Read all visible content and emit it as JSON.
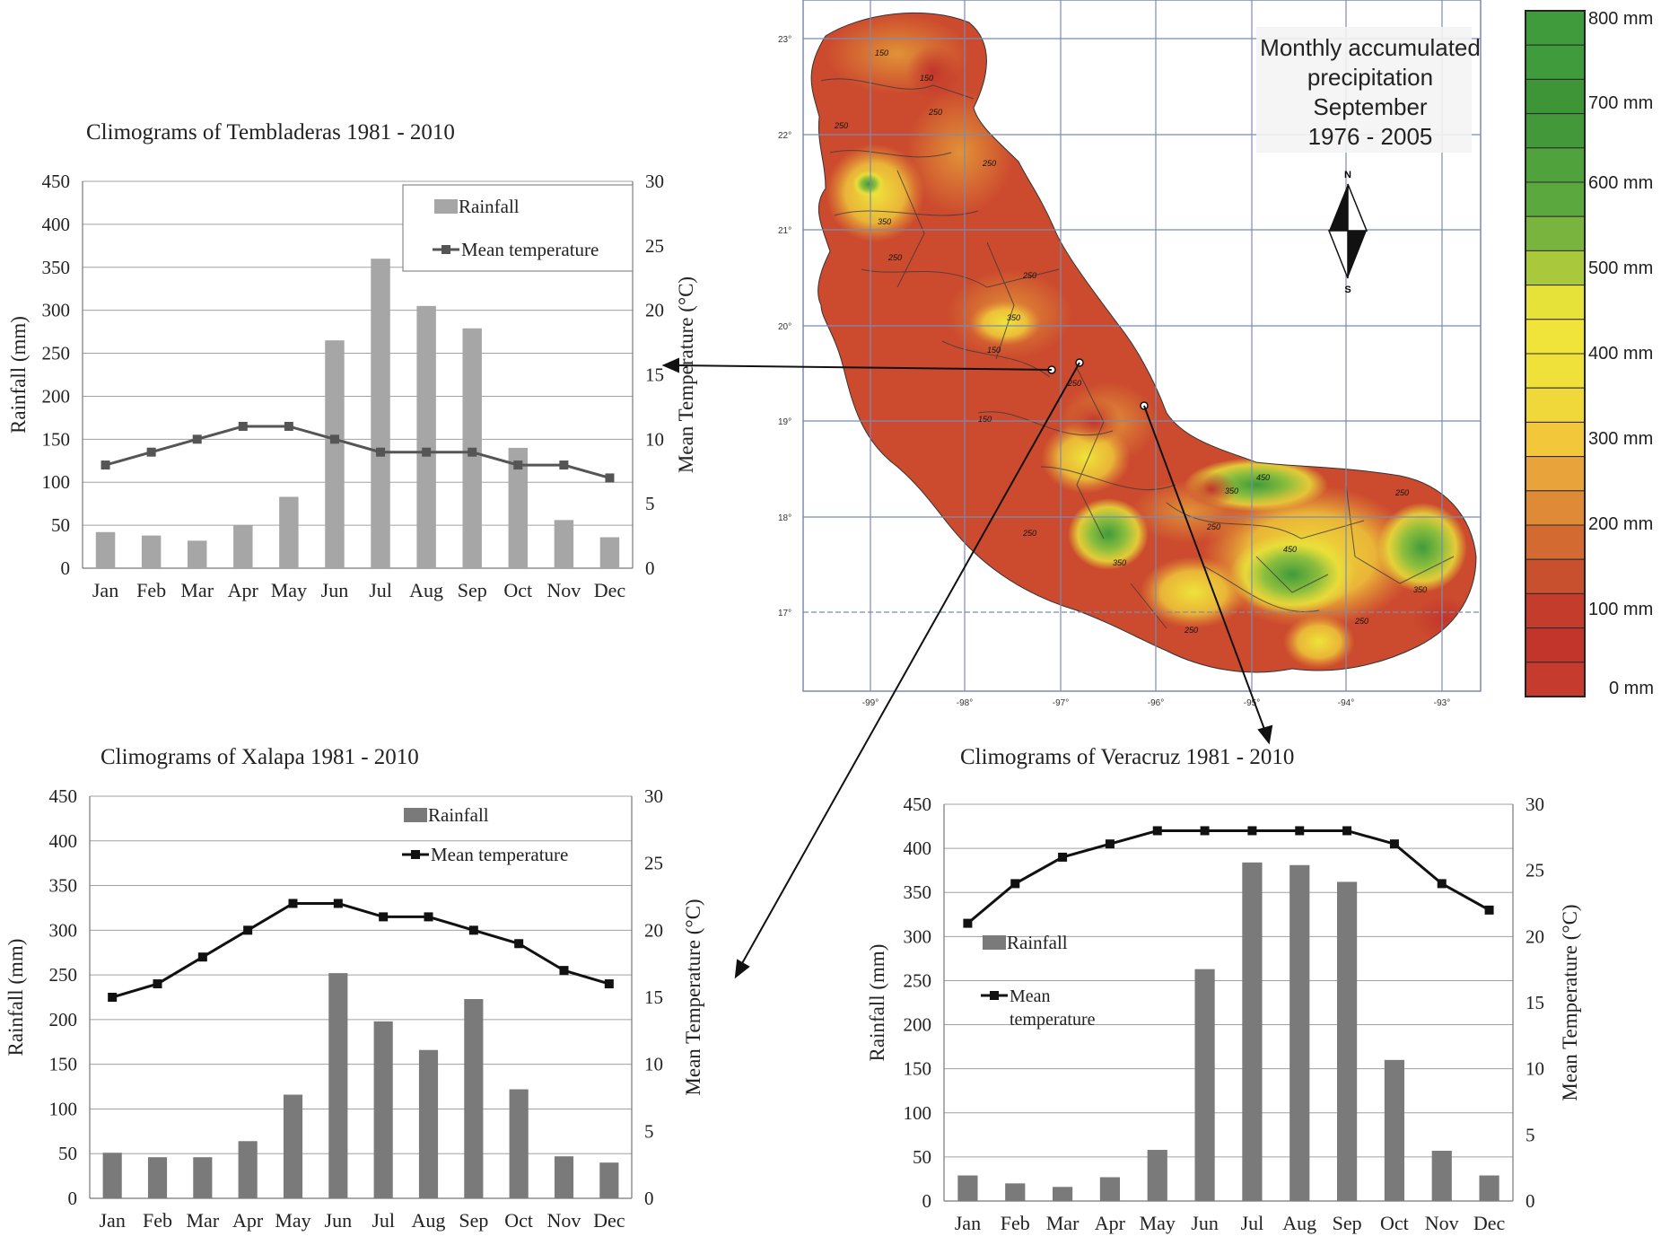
{
  "chart_data": [
    {
      "id": "tembladeras",
      "type": "bar",
      "title": "Climograms of Tembladeras 1981 - 2010",
      "categories": [
        "Jan",
        "Feb",
        "Mar",
        "Apr",
        "May",
        "Jun",
        "Jul",
        "Aug",
        "Sep",
        "Oct",
        "Nov",
        "Dec"
      ],
      "series": [
        {
          "name": "Rainfall",
          "type": "bar",
          "axis": "left",
          "color": "#a6a6a6",
          "values": [
            42,
            38,
            32,
            50,
            83,
            265,
            360,
            305,
            279,
            140,
            56,
            36
          ]
        },
        {
          "name": "Mean temperature",
          "type": "line",
          "axis": "right",
          "color": "#555555",
          "values": [
            8,
            9,
            10,
            11,
            11,
            10,
            9,
            9,
            9,
            8,
            8,
            7
          ]
        }
      ],
      "ylabel": "Rainfall (mm)",
      "ylim": [
        0,
        450
      ],
      "yticks": [
        0,
        50,
        100,
        150,
        200,
        250,
        300,
        350,
        400,
        450
      ],
      "y2label": "Mean Temperature (°C)",
      "y2lim": [
        0,
        30
      ],
      "y2ticks": [
        0,
        5,
        10,
        15,
        20,
        25,
        30
      ],
      "legend": "top-right",
      "grid": true
    },
    {
      "id": "xalapa",
      "type": "bar",
      "title": "Climograms of Xalapa 1981 - 2010",
      "categories": [
        "Jan",
        "Feb",
        "Mar",
        "Apr",
        "May",
        "Jun",
        "Jul",
        "Aug",
        "Sep",
        "Oct",
        "Nov",
        "Dec"
      ],
      "series": [
        {
          "name": "Rainfall",
          "type": "bar",
          "axis": "left",
          "color": "#7a7a7a",
          "values": [
            51,
            46,
            46,
            64,
            116,
            252,
            198,
            166,
            223,
            122,
            47,
            40
          ]
        },
        {
          "name": "Mean temperature",
          "type": "line",
          "axis": "right",
          "color": "#111111",
          "values": [
            15,
            16,
            18,
            20,
            22,
            22,
            21,
            21,
            20,
            19,
            17,
            16
          ]
        }
      ],
      "ylabel": "Rainfall (mm)",
      "ylim": [
        0,
        450
      ],
      "yticks": [
        0,
        50,
        100,
        150,
        200,
        250,
        300,
        350,
        400,
        450
      ],
      "y2label": "Mean Temperature (°C)",
      "y2lim": [
        0,
        30
      ],
      "y2ticks": [
        0,
        5,
        10,
        15,
        20,
        25,
        30
      ],
      "legend": "top-right",
      "grid": true
    },
    {
      "id": "veracruz",
      "type": "bar",
      "title": "Climograms of Veracruz 1981 - 2010",
      "categories": [
        "Jan",
        "Feb",
        "Mar",
        "Apr",
        "May",
        "Jun",
        "Jul",
        "Aug",
        "Sep",
        "Oct",
        "Nov",
        "Dec"
      ],
      "series": [
        {
          "name": "Rainfall",
          "type": "bar",
          "axis": "left",
          "color": "#7a7a7a",
          "values": [
            29,
            20,
            16,
            27,
            58,
            263,
            384,
            381,
            362,
            160,
            57,
            29
          ]
        },
        {
          "name": "Mean temperature",
          "type": "line",
          "axis": "right",
          "color": "#111111",
          "legend_lines": [
            "Mean",
            "temperature"
          ],
          "values": [
            21,
            24,
            26,
            27,
            28,
            28,
            28,
            28,
            28,
            27,
            24,
            22
          ]
        }
      ],
      "ylabel": "Rainfall (mm)",
      "ylim": [
        0,
        450
      ],
      "yticks": [
        0,
        50,
        100,
        150,
        200,
        250,
        300,
        350,
        400,
        450
      ],
      "y2label": "Mean Temperature (°C)",
      "y2lim": [
        0,
        30
      ],
      "y2ticks": [
        0,
        5,
        10,
        15,
        20,
        25,
        30
      ],
      "legend": "left",
      "grid": true
    }
  ],
  "map": {
    "title_lines": [
      "Monthly accumulated",
      "precipitation",
      "September",
      "1976 - 2005"
    ],
    "north_label": "N",
    "south_label": "S",
    "lat_labels": [
      "23°",
      "22°",
      "21°",
      "20°",
      "19°",
      "18°",
      "17°"
    ],
    "lon_labels": [
      "-99°",
      "-98°",
      "-97°",
      "-96°",
      "-95°",
      "-94°",
      "-93°"
    ],
    "contour_labels": [
      "150",
      "150",
      "250",
      "250",
      "350",
      "250",
      "250",
      "150",
      "250",
      "350",
      "450",
      "350",
      "250",
      "250",
      "450",
      "350",
      "250",
      "350",
      "250",
      "250",
      "250",
      "150"
    ],
    "colorbar": {
      "labels": [
        "800 mm",
        "700 mm",
        "600 mm",
        "500 mm",
        "400 mm",
        "300 mm",
        "200 mm",
        "100 mm",
        "0 mm"
      ],
      "colors": [
        "#3f9b3c",
        "#3f9b3c",
        "#3e9538",
        "#43993a",
        "#4fa23c",
        "#5aa83e",
        "#79b43e",
        "#a9c83c",
        "#e6e23a",
        "#f0e43a",
        "#efe03a",
        "#f1d83a",
        "#f2c83a",
        "#e8a33a",
        "#de8a36",
        "#d36a32",
        "#c8502e",
        "#c43d2c",
        "#c2352b",
        "#c53b2e"
      ]
    }
  }
}
